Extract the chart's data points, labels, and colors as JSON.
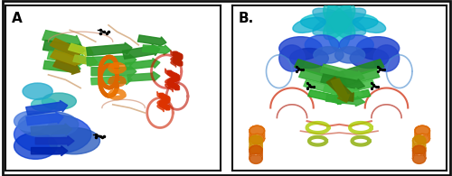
{
  "figure_width": 5.0,
  "figure_height": 1.95,
  "dpi": 100,
  "background_color": "#ffffff",
  "outer_border_color": "#111111",
  "outer_border_linewidth": 2.0,
  "panel_A_label": "A",
  "panel_B_label": "B.",
  "label_fontsize": 10,
  "label_color": "#000000",
  "panel_border_color": "#111111",
  "panel_border_linewidth": 1.5,
  "panel_A_bg": "#ffffff",
  "panel_B_bg": "#ffffff"
}
